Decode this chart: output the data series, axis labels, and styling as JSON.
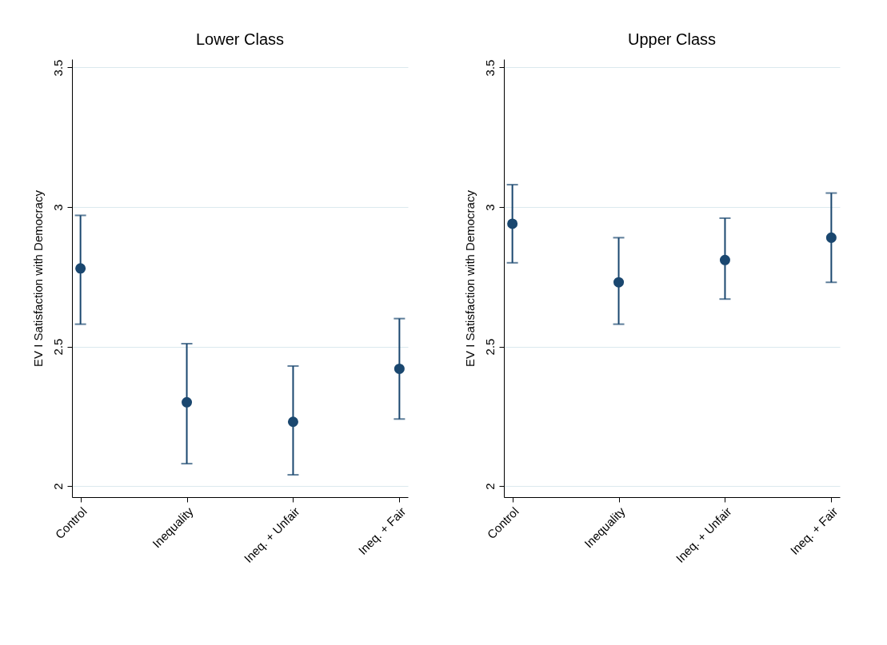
{
  "chart_data": [
    {
      "type": "scatter",
      "title": "Lower Class",
      "ylabel": "EV I Satisfaction with Democracy",
      "categories": [
        "Control",
        "Inequality",
        "Ineq. + Unfair",
        "Ineq. + Fair"
      ],
      "ylim": [
        1.96,
        3.53
      ],
      "yticks": [
        2,
        2.5,
        3,
        3.5
      ],
      "grid": "y",
      "marker": "circle",
      "series": [
        {
          "color": "#1a476f",
          "values": [
            2.78,
            2.3,
            2.23,
            2.42
          ],
          "errors": [
            [
              2.58,
              2.97
            ],
            [
              2.08,
              2.51
            ],
            [
              2.04,
              2.43
            ],
            [
              2.24,
              2.6
            ]
          ]
        }
      ]
    },
    {
      "type": "scatter",
      "title": "Upper Class",
      "ylabel": "EV I Satisfaction with Democracy",
      "categories": [
        "Control",
        "Inequality",
        "Ineq. + Unfair",
        "Ineq. + Fair"
      ],
      "ylim": [
        1.96,
        3.53
      ],
      "yticks": [
        2,
        2.5,
        3,
        3.5
      ],
      "grid": "y",
      "marker": "circle",
      "series": [
        {
          "color": "#1a476f",
          "values": [
            2.94,
            2.73,
            2.81,
            2.89
          ],
          "errors": [
            [
              2.8,
              3.08
            ],
            [
              2.58,
              2.89
            ],
            [
              2.67,
              2.96
            ],
            [
              2.73,
              3.05
            ]
          ]
        }
      ]
    }
  ]
}
